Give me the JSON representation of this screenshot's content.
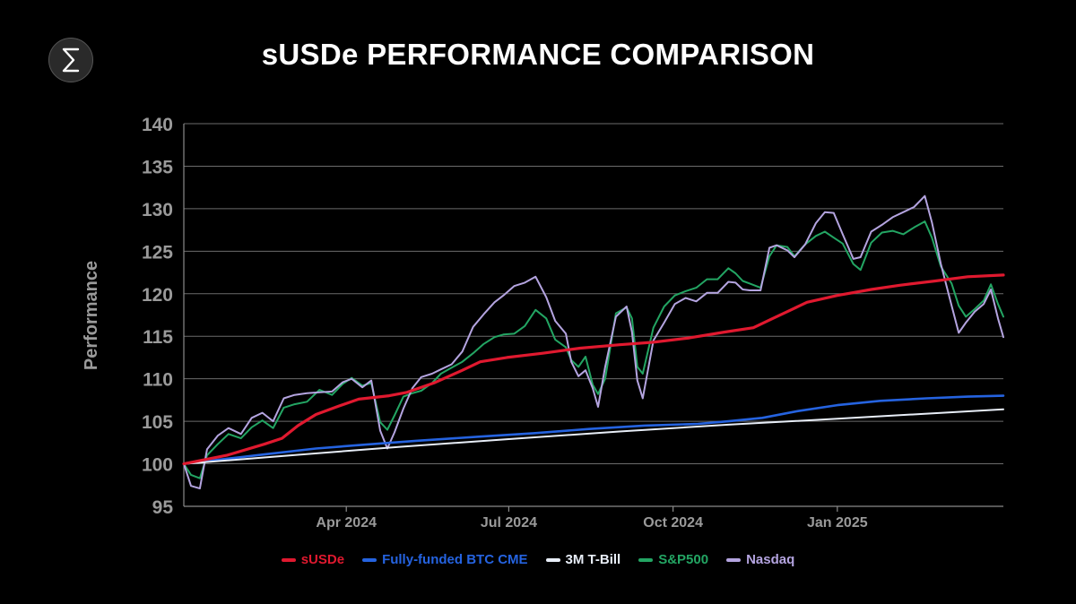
{
  "header": {
    "title": "sUSDe PERFORMANCE COMPARISON",
    "logo_icon": "ethena-logo-icon"
  },
  "chart_data": {
    "type": "line",
    "title": "sUSDe PERFORMANCE COMPARISON",
    "ylabel": "Performance",
    "xlabel": "",
    "ylim": [
      95,
      140
    ],
    "yticks": [
      95,
      100,
      105,
      110,
      115,
      120,
      125,
      130,
      135,
      140
    ],
    "xlim": [
      "2024-01-01",
      "2025-04-04"
    ],
    "xticks": [
      {
        "label": "Apr 2024",
        "date": "2024-04-01"
      },
      {
        "label": "Jul 2024",
        "date": "2024-07-01"
      },
      {
        "label": "Oct 2024",
        "date": "2024-10-01"
      },
      {
        "label": "Jan 2025",
        "date": "2025-01-01"
      }
    ],
    "grid": true,
    "legend_position": "bottom-center",
    "series": [
      {
        "name": "sUSDe",
        "color": "#e0192f",
        "points": [
          [
            "2024-01-01",
            100.0
          ],
          [
            "2024-01-25",
            101.0
          ],
          [
            "2024-02-15",
            102.3
          ],
          [
            "2024-02-25",
            103.0
          ],
          [
            "2024-03-05",
            104.5
          ],
          [
            "2024-03-15",
            105.8
          ],
          [
            "2024-03-28",
            106.8
          ],
          [
            "2024-04-08",
            107.6
          ],
          [
            "2024-04-25",
            108.0
          ],
          [
            "2024-05-05",
            108.4
          ],
          [
            "2024-05-20",
            109.5
          ],
          [
            "2024-06-05",
            111.0
          ],
          [
            "2024-06-15",
            112.0
          ],
          [
            "2024-06-30",
            112.5
          ],
          [
            "2024-07-20",
            113.0
          ],
          [
            "2024-08-10",
            113.6
          ],
          [
            "2024-09-01",
            114.0
          ],
          [
            "2024-09-20",
            114.3
          ],
          [
            "2024-10-10",
            114.8
          ],
          [
            "2024-10-30",
            115.5
          ],
          [
            "2024-11-15",
            116.0
          ],
          [
            "2024-11-25",
            117.0
          ],
          [
            "2024-12-05",
            118.0
          ],
          [
            "2024-12-15",
            119.0
          ],
          [
            "2025-01-01",
            119.8
          ],
          [
            "2025-01-20",
            120.5
          ],
          [
            "2025-02-05",
            121.0
          ],
          [
            "2025-02-25",
            121.5
          ],
          [
            "2025-03-15",
            122.0
          ],
          [
            "2025-04-04",
            122.2
          ]
        ]
      },
      {
        "name": "Fully-funded BTC CME",
        "color": "#2563e0",
        "points": [
          [
            "2024-01-01",
            100.0
          ],
          [
            "2024-02-15",
            101.1
          ],
          [
            "2024-03-15",
            101.8
          ],
          [
            "2024-04-08",
            102.2
          ],
          [
            "2024-05-10",
            102.7
          ],
          [
            "2024-06-15",
            103.2
          ],
          [
            "2024-07-15",
            103.6
          ],
          [
            "2024-08-15",
            104.1
          ],
          [
            "2024-09-15",
            104.5
          ],
          [
            "2024-10-15",
            104.7
          ],
          [
            "2024-11-01",
            105.0
          ],
          [
            "2024-11-20",
            105.4
          ],
          [
            "2024-12-10",
            106.2
          ],
          [
            "2025-01-01",
            106.9
          ],
          [
            "2025-01-25",
            107.4
          ],
          [
            "2025-02-20",
            107.7
          ],
          [
            "2025-03-15",
            107.9
          ],
          [
            "2025-04-04",
            108.0
          ]
        ]
      },
      {
        "name": "3M T-Bill",
        "color": "#e8eef8",
        "points": [
          [
            "2024-01-01",
            100.0
          ],
          [
            "2024-03-01",
            101.0
          ],
          [
            "2024-05-01",
            102.0
          ],
          [
            "2024-07-01",
            102.9
          ],
          [
            "2024-09-01",
            103.8
          ],
          [
            "2024-11-01",
            104.6
          ],
          [
            "2025-01-01",
            105.3
          ],
          [
            "2025-03-01",
            106.0
          ],
          [
            "2025-04-04",
            106.4
          ]
        ]
      },
      {
        "name": "S&P500",
        "color": "#23a563",
        "points": [
          [
            "2024-01-01",
            100.0
          ],
          [
            "2024-01-05",
            98.7
          ],
          [
            "2024-01-10",
            98.3
          ],
          [
            "2024-01-14",
            101.0
          ],
          [
            "2024-01-20",
            102.3
          ],
          [
            "2024-01-26",
            103.5
          ],
          [
            "2024-02-02",
            103.0
          ],
          [
            "2024-02-08",
            104.3
          ],
          [
            "2024-02-14",
            105.1
          ],
          [
            "2024-02-20",
            104.2
          ],
          [
            "2024-02-26",
            106.6
          ],
          [
            "2024-03-03",
            107.0
          ],
          [
            "2024-03-10",
            107.3
          ],
          [
            "2024-03-17",
            108.7
          ],
          [
            "2024-03-24",
            108.1
          ],
          [
            "2024-03-30",
            109.4
          ],
          [
            "2024-04-04",
            110.1
          ],
          [
            "2024-04-10",
            109.2
          ],
          [
            "2024-04-15",
            109.5
          ],
          [
            "2024-04-20",
            104.9
          ],
          [
            "2024-04-24",
            104.0
          ],
          [
            "2024-04-28",
            105.7
          ],
          [
            "2024-05-03",
            107.9
          ],
          [
            "2024-05-08",
            108.3
          ],
          [
            "2024-05-13",
            108.6
          ],
          [
            "2024-05-19",
            109.5
          ],
          [
            "2024-05-24",
            110.6
          ],
          [
            "2024-05-30",
            111.3
          ],
          [
            "2024-06-05",
            112.0
          ],
          [
            "2024-06-11",
            113.0
          ],
          [
            "2024-06-17",
            114.1
          ],
          [
            "2024-06-23",
            114.9
          ],
          [
            "2024-06-28",
            115.2
          ],
          [
            "2024-07-04",
            115.3
          ],
          [
            "2024-07-10",
            116.2
          ],
          [
            "2024-07-16",
            118.1
          ],
          [
            "2024-07-22",
            117.1
          ],
          [
            "2024-07-27",
            114.6
          ],
          [
            "2024-08-02",
            113.7
          ],
          [
            "2024-08-05",
            112.2
          ],
          [
            "2024-08-09",
            111.4
          ],
          [
            "2024-08-13",
            112.6
          ],
          [
            "2024-08-17",
            109.3
          ],
          [
            "2024-08-20",
            108.2
          ],
          [
            "2024-08-24",
            110.0
          ],
          [
            "2024-08-30",
            117.7
          ],
          [
            "2024-09-05",
            118.4
          ],
          [
            "2024-09-08",
            117.1
          ],
          [
            "2024-09-11",
            111.4
          ],
          [
            "2024-09-14",
            110.6
          ],
          [
            "2024-09-20",
            116.0
          ],
          [
            "2024-09-26",
            118.5
          ],
          [
            "2024-10-02",
            119.8
          ],
          [
            "2024-10-08",
            120.3
          ],
          [
            "2024-10-14",
            120.7
          ],
          [
            "2024-10-20",
            121.7
          ],
          [
            "2024-10-26",
            121.7
          ],
          [
            "2024-11-01",
            123.0
          ],
          [
            "2024-11-05",
            122.4
          ],
          [
            "2024-11-09",
            121.5
          ],
          [
            "2024-11-13",
            121.2
          ],
          [
            "2024-11-19",
            120.7
          ],
          [
            "2024-11-24",
            124.4
          ],
          [
            "2024-11-28",
            125.7
          ],
          [
            "2024-12-04",
            125.5
          ],
          [
            "2024-12-08",
            124.4
          ],
          [
            "2024-12-14",
            125.8
          ],
          [
            "2024-12-20",
            126.8
          ],
          [
            "2024-12-25",
            127.3
          ],
          [
            "2024-12-30",
            126.6
          ],
          [
            "2025-01-04",
            125.9
          ],
          [
            "2025-01-10",
            123.5
          ],
          [
            "2025-01-14",
            122.8
          ],
          [
            "2025-01-20",
            126.0
          ],
          [
            "2025-01-26",
            127.2
          ],
          [
            "2025-02-01",
            127.4
          ],
          [
            "2025-02-07",
            127.0
          ],
          [
            "2025-02-13",
            127.8
          ],
          [
            "2025-02-19",
            128.5
          ],
          [
            "2025-02-23",
            126.6
          ],
          [
            "2025-02-28",
            123.2
          ],
          [
            "2025-03-06",
            121.2
          ],
          [
            "2025-03-10",
            118.6
          ],
          [
            "2025-03-14",
            117.3
          ],
          [
            "2025-03-19",
            118.2
          ],
          [
            "2025-03-24",
            119.2
          ],
          [
            "2025-03-28",
            121.1
          ],
          [
            "2025-04-01",
            118.8
          ],
          [
            "2025-04-04",
            117.3
          ]
        ]
      },
      {
        "name": "Nasdaq",
        "color": "#b4a4e0",
        "points": [
          [
            "2024-01-01",
            100.0
          ],
          [
            "2024-01-05",
            97.4
          ],
          [
            "2024-01-10",
            97.1
          ],
          [
            "2024-01-14",
            101.7
          ],
          [
            "2024-01-20",
            103.3
          ],
          [
            "2024-01-26",
            104.2
          ],
          [
            "2024-02-02",
            103.5
          ],
          [
            "2024-02-08",
            105.4
          ],
          [
            "2024-02-14",
            106.0
          ],
          [
            "2024-02-20",
            105.0
          ],
          [
            "2024-02-26",
            107.7
          ],
          [
            "2024-03-03",
            108.1
          ],
          [
            "2024-03-10",
            108.3
          ],
          [
            "2024-03-17",
            108.4
          ],
          [
            "2024-03-24",
            108.5
          ],
          [
            "2024-03-30",
            109.6
          ],
          [
            "2024-04-04",
            110.0
          ],
          [
            "2024-04-10",
            109.0
          ],
          [
            "2024-04-15",
            109.8
          ],
          [
            "2024-04-20",
            103.9
          ],
          [
            "2024-04-24",
            101.8
          ],
          [
            "2024-04-28",
            103.7
          ],
          [
            "2024-05-03",
            106.5
          ],
          [
            "2024-05-08",
            108.9
          ],
          [
            "2024-05-13",
            110.2
          ],
          [
            "2024-05-19",
            110.6
          ],
          [
            "2024-05-24",
            111.1
          ],
          [
            "2024-05-30",
            111.7
          ],
          [
            "2024-06-05",
            113.2
          ],
          [
            "2024-06-11",
            116.1
          ],
          [
            "2024-06-17",
            117.6
          ],
          [
            "2024-06-23",
            119.0
          ],
          [
            "2024-06-28",
            119.8
          ],
          [
            "2024-07-04",
            120.9
          ],
          [
            "2024-07-10",
            121.3
          ],
          [
            "2024-07-16",
            122.0
          ],
          [
            "2024-07-22",
            119.6
          ],
          [
            "2024-07-27",
            116.8
          ],
          [
            "2024-08-02",
            115.3
          ],
          [
            "2024-08-05",
            112.0
          ],
          [
            "2024-08-09",
            110.3
          ],
          [
            "2024-08-13",
            111.0
          ],
          [
            "2024-08-17",
            108.9
          ],
          [
            "2024-08-20",
            106.7
          ],
          [
            "2024-08-24",
            111.4
          ],
          [
            "2024-08-30",
            117.3
          ],
          [
            "2024-09-05",
            118.5
          ],
          [
            "2024-09-08",
            115.5
          ],
          [
            "2024-09-11",
            109.8
          ],
          [
            "2024-09-14",
            107.7
          ],
          [
            "2024-09-20",
            114.5
          ],
          [
            "2024-09-26",
            116.6
          ],
          [
            "2024-10-02",
            118.8
          ],
          [
            "2024-10-08",
            119.5
          ],
          [
            "2024-10-14",
            119.1
          ],
          [
            "2024-10-20",
            120.1
          ],
          [
            "2024-10-26",
            120.1
          ],
          [
            "2024-11-01",
            121.4
          ],
          [
            "2024-11-05",
            121.3
          ],
          [
            "2024-11-09",
            120.5
          ],
          [
            "2024-11-13",
            120.4
          ],
          [
            "2024-11-19",
            120.4
          ],
          [
            "2024-11-24",
            125.4
          ],
          [
            "2024-11-28",
            125.7
          ],
          [
            "2024-12-04",
            125.1
          ],
          [
            "2024-12-08",
            124.3
          ],
          [
            "2024-12-14",
            125.8
          ],
          [
            "2024-12-20",
            128.3
          ],
          [
            "2024-12-25",
            129.6
          ],
          [
            "2024-12-30",
            129.5
          ],
          [
            "2025-01-04",
            127.0
          ],
          [
            "2025-01-10",
            124.1
          ],
          [
            "2025-01-14",
            124.3
          ],
          [
            "2025-01-20",
            127.3
          ],
          [
            "2025-01-26",
            128.1
          ],
          [
            "2025-02-01",
            129.0
          ],
          [
            "2025-02-07",
            129.6
          ],
          [
            "2025-02-13",
            130.2
          ],
          [
            "2025-02-19",
            131.5
          ],
          [
            "2025-02-23",
            128.4
          ],
          [
            "2025-02-28",
            123.5
          ],
          [
            "2025-03-06",
            118.6
          ],
          [
            "2025-03-10",
            115.4
          ],
          [
            "2025-03-14",
            116.6
          ],
          [
            "2025-03-19",
            117.9
          ],
          [
            "2025-03-24",
            118.8
          ],
          [
            "2025-03-28",
            120.5
          ],
          [
            "2025-04-01",
            117.1
          ],
          [
            "2025-04-04",
            114.9
          ]
        ]
      }
    ]
  }
}
